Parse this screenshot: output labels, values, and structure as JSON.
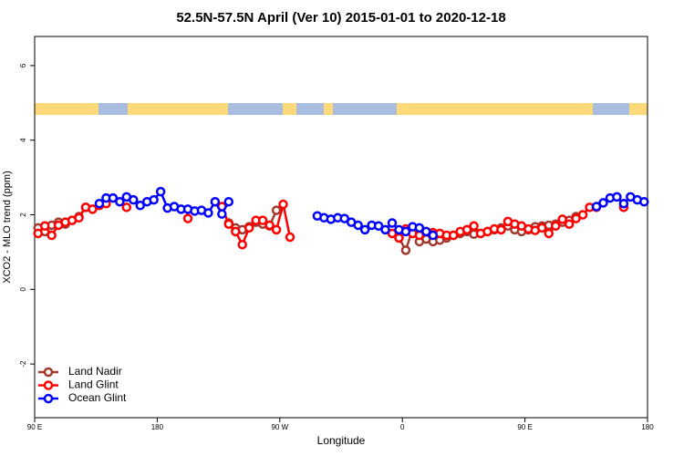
{
  "chart_data": {
    "type": "line",
    "title": "52.5N-57.5N April (Ver 10)   2015-01-01 to 2020-12-18",
    "xlabel": "Longitude",
    "ylabel": "XCO2 - MLO trend (ppm)",
    "xlim": [
      90,
      540
    ],
    "ylim": [
      -3.44,
      6.78
    ],
    "xticks": [
      {
        "value": 90,
        "label": "90 E"
      },
      180,
      {
        "value": 270,
        "label": "90 W"
      },
      {
        "value": 360,
        "label": "0"
      },
      {
        "value": 450,
        "label": "90 E"
      },
      {
        "value": 540,
        "label": "180"
      }
    ],
    "yticks": [
      -2,
      0,
      2,
      4,
      6
    ],
    "legend": "lower left",
    "series": [
      {
        "name": "Land Nadir",
        "color": "#a33a32",
        "x": [
          92.5,
          97.5,
          102.5,
          107.5,
          112.5,
          117.5,
          122.5,
          127.5,
          null,
          232.5,
          237.5,
          242.5,
          247.5,
          252.5,
          257.5,
          262.5,
          267.5,
          null,
          357.5,
          362.5,
          367.5,
          372.5,
          377.5,
          382.5,
          387.5,
          392.5,
          397.5,
          402.5,
          407.5,
          412.5,
          417.5,
          422.5,
          427.5,
          432.5,
          437.5,
          442.5,
          447.5,
          452.5,
          457.5,
          462.5,
          467.5,
          472.5,
          477.5,
          482.5,
          487.5
        ],
        "values": [
          1.65,
          1.55,
          1.72,
          1.8,
          1.75,
          1.85,
          1.95,
          2.2,
          null,
          1.78,
          1.65,
          1.6,
          1.68,
          1.8,
          1.75,
          1.7,
          2.12,
          null,
          1.38,
          1.05,
          1.62,
          1.28,
          1.35,
          1.28,
          1.32,
          1.38,
          1.45,
          1.5,
          1.55,
          1.48,
          1.5,
          1.55,
          1.6,
          1.65,
          1.7,
          1.6,
          1.55,
          1.6,
          1.68,
          1.7,
          1.72,
          1.75,
          1.8,
          1.85,
          1.95
        ]
      },
      {
        "name": "Land Glint",
        "color": "#ff0000",
        "x": [
          92.5,
          97.5,
          102.5,
          107.5,
          112.5,
          117.5,
          122.5,
          127.5,
          132.5,
          137.5,
          142.5,
          null,
          157.5,
          null,
          202.5,
          null,
          227.5,
          232.5,
          237.5,
          242.5,
          247.5,
          252.5,
          257.5,
          262.5,
          267.5,
          272.5,
          277.5,
          null,
          352.5,
          357.5,
          362.5,
          367.5,
          372.5,
          377.5,
          382.5,
          387.5,
          392.5,
          397.5,
          402.5,
          407.5,
          412.5,
          417.5,
          422.5,
          427.5,
          432.5,
          437.5,
          442.5,
          447.5,
          452.5,
          457.5,
          462.5,
          467.5,
          472.5,
          477.5,
          482.5,
          487.5,
          492.5,
          497.5,
          502.5,
          null,
          522.5
        ],
        "values": [
          1.5,
          1.7,
          1.45,
          1.72,
          1.8,
          1.85,
          1.92,
          2.2,
          2.15,
          2.25,
          2.3,
          null,
          2.2,
          null,
          1.9,
          null,
          2.22,
          1.75,
          1.55,
          1.2,
          1.65,
          1.85,
          1.85,
          1.72,
          1.6,
          2.28,
          1.4,
          null,
          1.5,
          1.38,
          1.62,
          1.5,
          1.45,
          1.55,
          1.52,
          1.5,
          1.45,
          1.45,
          1.55,
          1.6,
          1.7,
          1.5,
          1.55,
          1.62,
          1.6,
          1.82,
          1.75,
          1.7,
          1.62,
          1.58,
          1.65,
          1.5,
          1.7,
          1.88,
          1.75,
          1.9,
          2.0,
          2.2,
          2.2,
          null,
          2.2
        ]
      },
      {
        "name": "Ocean Glint",
        "color": "#0000ff",
        "x": [
          137.5,
          142.5,
          147.5,
          152.5,
          157.5,
          162.5,
          167.5,
          172.5,
          177.5,
          182.5,
          187.5,
          192.5,
          197.5,
          202.5,
          207.5,
          212.5,
          217.5,
          222.5,
          227.5,
          232.5,
          null,
          297.5,
          302.5,
          307.5,
          312.5,
          317.5,
          322.5,
          327.5,
          332.5,
          337.5,
          342.5,
          347.5,
          352.5,
          357.5,
          362.5,
          367.5,
          372.5,
          377.5,
          382.5,
          null,
          502.5,
          507.5,
          512.5,
          517.5,
          522.5,
          527.5,
          532.5,
          537.5
        ],
        "values": [
          2.3,
          2.45,
          2.45,
          2.35,
          2.48,
          2.4,
          2.25,
          2.35,
          2.4,
          2.62,
          2.18,
          2.22,
          2.15,
          2.15,
          2.1,
          2.12,
          2.05,
          2.35,
          2.02,
          2.35,
          null,
          1.97,
          1.92,
          1.88,
          1.92,
          1.9,
          1.8,
          1.72,
          1.6,
          1.72,
          1.7,
          1.6,
          1.78,
          1.6,
          1.55,
          1.68,
          1.65,
          1.55,
          1.45,
          null,
          2.22,
          2.32,
          2.45,
          2.48,
          2.3,
          2.48,
          2.4,
          2.35
        ]
      }
    ]
  }
}
